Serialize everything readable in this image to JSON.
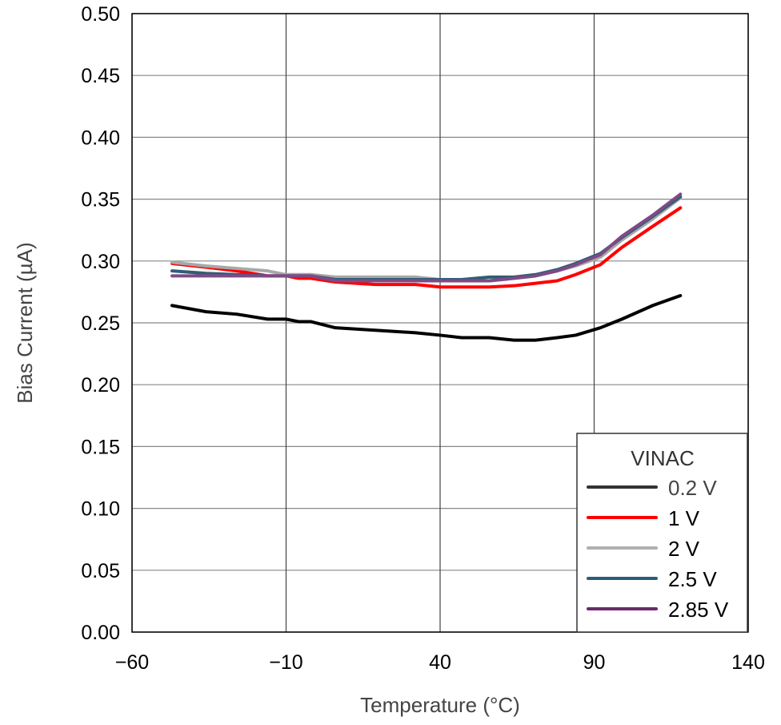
{
  "chart_data": {
    "type": "line",
    "title": "",
    "xlabel": "Temperature (°C)",
    "ylabel": "Bias Current (µA)",
    "xlim": [
      -60,
      140
    ],
    "ylim": [
      0,
      0.5
    ],
    "x_ticks": [
      "−60",
      "−10",
      "40",
      "90",
      "140"
    ],
    "x_tick_values": [
      -60,
      -10,
      40,
      90,
      140
    ],
    "y_ticks": [
      "0.00",
      "0.05",
      "0.10",
      "0.15",
      "0.20",
      "0.25",
      "0.30",
      "0.35",
      "0.40",
      "0.45",
      "0.50"
    ],
    "y_tick_values": [
      0,
      0.05,
      0.1,
      0.15,
      0.2,
      0.25,
      0.3,
      0.35,
      0.4,
      0.45,
      0.5
    ],
    "grid": true,
    "legend_title": "VINAC",
    "legend_position": "bottom-right",
    "x": [
      -47,
      -36,
      -26,
      -16,
      -10,
      -6,
      -2,
      6,
      19,
      32,
      40,
      47,
      56,
      64,
      71,
      78,
      84,
      92,
      99,
      109,
      118
    ],
    "series": [
      {
        "name": "0.2 V",
        "color": "#000000",
        "legend_color": "#333333",
        "values": [
          0.264,
          0.259,
          0.257,
          0.253,
          0.253,
          0.251,
          0.251,
          0.246,
          0.244,
          0.242,
          0.24,
          0.238,
          0.238,
          0.236,
          0.236,
          0.238,
          0.24,
          0.246,
          0.253,
          0.264,
          0.272
        ]
      },
      {
        "name": "1 V",
        "color": "#ff0000",
        "legend_color": "#ff0000",
        "values": [
          0.298,
          0.295,
          0.292,
          0.288,
          0.288,
          0.286,
          0.286,
          0.283,
          0.281,
          0.281,
          0.279,
          0.279,
          0.279,
          0.28,
          0.282,
          0.284,
          0.289,
          0.297,
          0.311,
          0.328,
          0.343
        ]
      },
      {
        "name": "2 V",
        "color": "#a8a8a8",
        "legend_color": "#b0b0b0",
        "values": [
          0.299,
          0.296,
          0.294,
          0.292,
          0.289,
          0.289,
          0.289,
          0.287,
          0.287,
          0.287,
          0.285,
          0.284,
          0.284,
          0.286,
          0.288,
          0.292,
          0.296,
          0.303,
          0.317,
          0.334,
          0.351
        ]
      },
      {
        "name": "2.5 V",
        "color": "#2e5e74",
        "legend_color": "#2e5e74",
        "values": [
          0.292,
          0.29,
          0.289,
          0.288,
          0.288,
          0.288,
          0.288,
          0.285,
          0.285,
          0.285,
          0.285,
          0.285,
          0.287,
          0.287,
          0.289,
          0.293,
          0.298,
          0.306,
          0.319,
          0.336,
          0.352
        ]
      },
      {
        "name": "2.85 V",
        "color": "#7e4a86",
        "legend_color": "#6b2a6b",
        "values": [
          0.288,
          0.288,
          0.288,
          0.288,
          0.288,
          0.288,
          0.288,
          0.284,
          0.284,
          0.284,
          0.284,
          0.284,
          0.284,
          0.286,
          0.288,
          0.292,
          0.297,
          0.305,
          0.32,
          0.337,
          0.354
        ]
      }
    ]
  }
}
